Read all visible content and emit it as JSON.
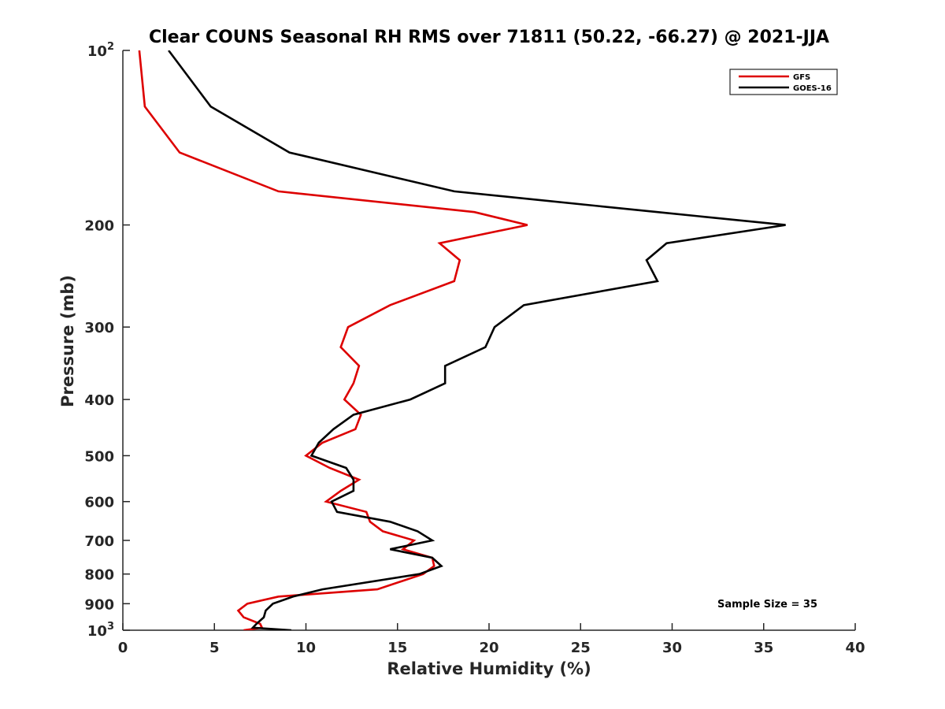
{
  "chart_data": {
    "type": "line",
    "title": "Clear COUNS Seasonal RH RMS over 71811 (50.22, -66.27) @ 2021-JJA",
    "xlabel": "Relative Humidity (%)",
    "ylabel": "Pressure (mb)",
    "xlim": [
      0,
      40
    ],
    "ylim": [
      100,
      1000
    ],
    "y_scale": "log",
    "y_reversed": true,
    "x_ticks": [
      "0",
      "5",
      "10",
      "15",
      "20",
      "25",
      "30",
      "35",
      "40"
    ],
    "y_ticks": [
      {
        "value": 100,
        "base": "10",
        "exp": "2"
      },
      {
        "value": 200,
        "label": "200"
      },
      {
        "value": 300,
        "label": "300"
      },
      {
        "value": 400,
        "label": "400"
      },
      {
        "value": 500,
        "label": "500"
      },
      {
        "value": 600,
        "label": "600"
      },
      {
        "value": 700,
        "label": "700"
      },
      {
        "value": 800,
        "label": "800"
      },
      {
        "value": 900,
        "label": "900"
      },
      {
        "value": 1000,
        "base": "10",
        "exp": "3"
      }
    ],
    "grid": false,
    "legend_position": "top-right",
    "annotation": "Sample Size = 35",
    "series": [
      {
        "name": "GFS",
        "color": "#dd0000",
        "points": [
          [
            0.9,
            100
          ],
          [
            1.2,
            125
          ],
          [
            3.1,
            150
          ],
          [
            8.5,
            175
          ],
          [
            19.2,
            190
          ],
          [
            22.1,
            200
          ],
          [
            17.3,
            215
          ],
          [
            18.4,
            230
          ],
          [
            18.1,
            250
          ],
          [
            14.6,
            275
          ],
          [
            12.3,
            300
          ],
          [
            11.9,
            325
          ],
          [
            12.9,
            350
          ],
          [
            12.6,
            375
          ],
          [
            12.1,
            400
          ],
          [
            13.0,
            425
          ],
          [
            12.7,
            450
          ],
          [
            10.9,
            475
          ],
          [
            10.0,
            500
          ],
          [
            11.3,
            525
          ],
          [
            12.9,
            550
          ],
          [
            11.9,
            575
          ],
          [
            11.1,
            600
          ],
          [
            13.3,
            625
          ],
          [
            13.5,
            650
          ],
          [
            14.2,
            675
          ],
          [
            15.9,
            700
          ],
          [
            15.3,
            725
          ],
          [
            16.9,
            750
          ],
          [
            17.0,
            775
          ],
          [
            16.4,
            800
          ],
          [
            13.9,
            850
          ],
          [
            8.5,
            875
          ],
          [
            6.8,
            900
          ],
          [
            6.3,
            925
          ],
          [
            6.6,
            950
          ],
          [
            7.5,
            975
          ],
          [
            7.6,
            990
          ],
          [
            6.6,
            1000
          ],
          [
            8.6,
            1010
          ],
          [
            6.9,
            1035
          ],
          [
            8.3,
            1060
          ]
        ]
      },
      {
        "name": "GOES-16",
        "color": "#000000",
        "points": [
          [
            2.5,
            100
          ],
          [
            4.8,
            125
          ],
          [
            9.1,
            150
          ],
          [
            18.1,
            175
          ],
          [
            29.2,
            190
          ],
          [
            36.2,
            200
          ],
          [
            29.7,
            215
          ],
          [
            28.6,
            230
          ],
          [
            29.2,
            250
          ],
          [
            21.9,
            275
          ],
          [
            20.3,
            300
          ],
          [
            19.8,
            325
          ],
          [
            17.6,
            350
          ],
          [
            17.6,
            375
          ],
          [
            15.7,
            400
          ],
          [
            12.6,
            425
          ],
          [
            11.5,
            450
          ],
          [
            10.7,
            475
          ],
          [
            10.3,
            500
          ],
          [
            12.2,
            525
          ],
          [
            12.6,
            550
          ],
          [
            12.6,
            575
          ],
          [
            11.4,
            600
          ],
          [
            11.7,
            625
          ],
          [
            14.6,
            650
          ],
          [
            16.1,
            675
          ],
          [
            16.9,
            700
          ],
          [
            14.6,
            725
          ],
          [
            16.9,
            750
          ],
          [
            17.4,
            775
          ],
          [
            16.2,
            800
          ],
          [
            10.9,
            850
          ],
          [
            9.3,
            875
          ],
          [
            8.2,
            900
          ],
          [
            7.8,
            925
          ],
          [
            7.7,
            950
          ],
          [
            7.3,
            975
          ],
          [
            7.1,
            990
          ],
          [
            9.2,
            1000
          ],
          [
            7.6,
            1010
          ],
          [
            9.2,
            1035
          ],
          [
            9.2,
            1060
          ]
        ]
      }
    ]
  }
}
